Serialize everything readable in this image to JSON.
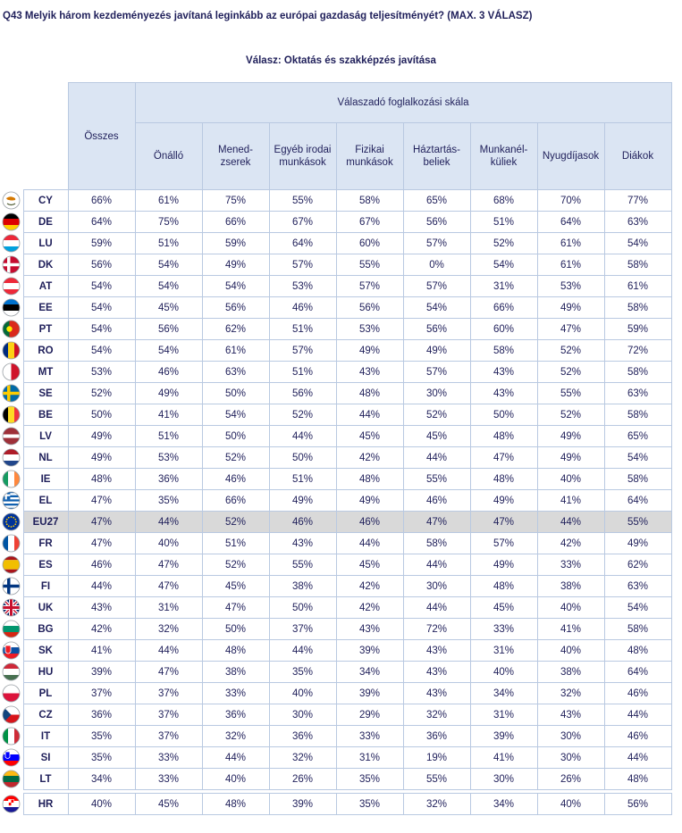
{
  "question": "Q43 Melyik három kezdeményezés javítaná leginkább az európai gazdaság teljesítményét? (MAX. 3 VÁLASZ)",
  "subtitle": "Válasz: Oktatás és szakképzés javítása",
  "chart_data": {
    "type": "table",
    "group_header": "Válaszadó foglalkozási skála",
    "columns": [
      {
        "key": "total",
        "label": "Összes"
      },
      {
        "key": "self",
        "label": "Önálló"
      },
      {
        "key": "mgr",
        "label": "Mened-\nzserek"
      },
      {
        "key": "office",
        "label": "Egyéb irodai\nmunkások"
      },
      {
        "key": "manual",
        "label": "Fizikai\nmunkások"
      },
      {
        "key": "house",
        "label": "Háztartás-\nbeliek"
      },
      {
        "key": "unemp",
        "label": "Munkanél-\nküliek"
      },
      {
        "key": "retired",
        "label": "Nyugdíjasok"
      },
      {
        "key": "students",
        "label": "Diákok"
      }
    ],
    "rows": [
      {
        "country": "CY",
        "values": [
          "66%",
          "61%",
          "75%",
          "55%",
          "58%",
          "65%",
          "68%",
          "70%",
          "77%"
        ]
      },
      {
        "country": "DE",
        "values": [
          "64%",
          "75%",
          "66%",
          "67%",
          "67%",
          "56%",
          "51%",
          "64%",
          "63%"
        ]
      },
      {
        "country": "LU",
        "values": [
          "59%",
          "51%",
          "59%",
          "64%",
          "60%",
          "57%",
          "52%",
          "61%",
          "54%"
        ]
      },
      {
        "country": "DK",
        "values": [
          "56%",
          "54%",
          "49%",
          "57%",
          "55%",
          "0%",
          "54%",
          "61%",
          "58%"
        ]
      },
      {
        "country": "AT",
        "values": [
          "54%",
          "54%",
          "54%",
          "53%",
          "57%",
          "57%",
          "31%",
          "53%",
          "61%"
        ]
      },
      {
        "country": "EE",
        "values": [
          "54%",
          "45%",
          "56%",
          "46%",
          "56%",
          "54%",
          "66%",
          "49%",
          "58%"
        ]
      },
      {
        "country": "PT",
        "values": [
          "54%",
          "56%",
          "62%",
          "51%",
          "53%",
          "56%",
          "60%",
          "47%",
          "59%"
        ]
      },
      {
        "country": "RO",
        "values": [
          "54%",
          "54%",
          "61%",
          "57%",
          "49%",
          "49%",
          "58%",
          "52%",
          "72%"
        ]
      },
      {
        "country": "MT",
        "values": [
          "53%",
          "46%",
          "63%",
          "51%",
          "43%",
          "57%",
          "43%",
          "52%",
          "58%"
        ]
      },
      {
        "country": "SE",
        "values": [
          "52%",
          "49%",
          "50%",
          "56%",
          "48%",
          "30%",
          "43%",
          "55%",
          "63%"
        ]
      },
      {
        "country": "BE",
        "values": [
          "50%",
          "41%",
          "54%",
          "52%",
          "44%",
          "52%",
          "50%",
          "52%",
          "58%"
        ]
      },
      {
        "country": "LV",
        "values": [
          "49%",
          "51%",
          "50%",
          "44%",
          "45%",
          "45%",
          "48%",
          "49%",
          "65%"
        ]
      },
      {
        "country": "NL",
        "values": [
          "49%",
          "53%",
          "52%",
          "50%",
          "42%",
          "44%",
          "47%",
          "49%",
          "54%"
        ]
      },
      {
        "country": "IE",
        "values": [
          "48%",
          "36%",
          "46%",
          "51%",
          "48%",
          "55%",
          "48%",
          "40%",
          "58%"
        ]
      },
      {
        "country": "EL",
        "values": [
          "47%",
          "35%",
          "66%",
          "49%",
          "49%",
          "46%",
          "49%",
          "41%",
          "64%"
        ]
      },
      {
        "country": "EU27",
        "values": [
          "47%",
          "44%",
          "52%",
          "46%",
          "46%",
          "47%",
          "47%",
          "44%",
          "55%"
        ],
        "highlight": true
      },
      {
        "country": "FR",
        "values": [
          "47%",
          "40%",
          "51%",
          "43%",
          "44%",
          "58%",
          "57%",
          "42%",
          "49%"
        ]
      },
      {
        "country": "ES",
        "values": [
          "46%",
          "47%",
          "52%",
          "55%",
          "45%",
          "44%",
          "49%",
          "33%",
          "62%"
        ]
      },
      {
        "country": "FI",
        "values": [
          "44%",
          "47%",
          "45%",
          "38%",
          "42%",
          "30%",
          "48%",
          "38%",
          "63%"
        ]
      },
      {
        "country": "UK",
        "values": [
          "43%",
          "31%",
          "47%",
          "50%",
          "42%",
          "44%",
          "45%",
          "40%",
          "54%"
        ]
      },
      {
        "country": "BG",
        "values": [
          "42%",
          "32%",
          "50%",
          "37%",
          "43%",
          "72%",
          "33%",
          "41%",
          "58%"
        ]
      },
      {
        "country": "SK",
        "values": [
          "41%",
          "44%",
          "48%",
          "44%",
          "39%",
          "43%",
          "31%",
          "40%",
          "48%"
        ]
      },
      {
        "country": "HU",
        "values": [
          "39%",
          "47%",
          "38%",
          "35%",
          "34%",
          "43%",
          "40%",
          "38%",
          "64%"
        ]
      },
      {
        "country": "PL",
        "values": [
          "37%",
          "37%",
          "33%",
          "40%",
          "39%",
          "43%",
          "34%",
          "32%",
          "46%"
        ]
      },
      {
        "country": "CZ",
        "values": [
          "36%",
          "37%",
          "36%",
          "30%",
          "29%",
          "32%",
          "31%",
          "43%",
          "44%"
        ]
      },
      {
        "country": "IT",
        "values": [
          "35%",
          "37%",
          "32%",
          "36%",
          "33%",
          "36%",
          "39%",
          "30%",
          "46%"
        ]
      },
      {
        "country": "SI",
        "values": [
          "35%",
          "33%",
          "44%",
          "32%",
          "31%",
          "19%",
          "41%",
          "30%",
          "44%"
        ]
      },
      {
        "country": "LT",
        "values": [
          "34%",
          "33%",
          "40%",
          "26%",
          "35%",
          "55%",
          "30%",
          "26%",
          "48%"
        ]
      }
    ],
    "extra_rows": [
      {
        "country": "HR",
        "values": [
          "40%",
          "45%",
          "48%",
          "39%",
          "35%",
          "32%",
          "34%",
          "40%",
          "56%"
        ]
      }
    ]
  },
  "flags": {
    "CY": {
      "type": "cy",
      "colors": [
        "#ffffff",
        "#d57800",
        "#4e5b31"
      ]
    },
    "DE": {
      "type": "h",
      "colors": [
        "#000000",
        "#dd0000",
        "#ffce00"
      ]
    },
    "LU": {
      "type": "h",
      "colors": [
        "#ed2939",
        "#ffffff",
        "#00a1de"
      ]
    },
    "DK": {
      "type": "cross",
      "colors": [
        "#c60c30",
        "#ffffff"
      ]
    },
    "AT": {
      "type": "h",
      "colors": [
        "#ed2939",
        "#ffffff",
        "#ed2939"
      ]
    },
    "EE": {
      "type": "h",
      "colors": [
        "#0072ce",
        "#000000",
        "#ffffff"
      ]
    },
    "PT": {
      "type": "pt",
      "colors": [
        "#046a38",
        "#da291c",
        "#ffe900"
      ]
    },
    "RO": {
      "type": "v",
      "colors": [
        "#002b7f",
        "#fcd116",
        "#ce1126"
      ]
    },
    "MT": {
      "type": "v2",
      "colors": [
        "#ffffff",
        "#cf142b"
      ]
    },
    "SE": {
      "type": "cross",
      "colors": [
        "#006aa7",
        "#fecc00"
      ]
    },
    "BE": {
      "type": "v",
      "colors": [
        "#000000",
        "#fdda24",
        "#ef3340"
      ]
    },
    "LV": {
      "type": "lv",
      "colors": [
        "#9e3039",
        "#ffffff",
        "#9e3039"
      ]
    },
    "NL": {
      "type": "h",
      "colors": [
        "#ae1c28",
        "#ffffff",
        "#21468b"
      ]
    },
    "IE": {
      "type": "v",
      "colors": [
        "#169b62",
        "#ffffff",
        "#ff883e"
      ]
    },
    "EL": {
      "type": "gr",
      "colors": [
        "#0d5eaf",
        "#ffffff"
      ]
    },
    "EU27": {
      "type": "eu",
      "colors": [
        "#003399",
        "#ffcc00"
      ]
    },
    "FR": {
      "type": "v",
      "colors": [
        "#0055a4",
        "#ffffff",
        "#ef4135"
      ]
    },
    "ES": {
      "type": "es",
      "colors": [
        "#aa151b",
        "#f1bf00",
        "#aa151b"
      ]
    },
    "FI": {
      "type": "cross",
      "colors": [
        "#ffffff",
        "#003580"
      ]
    },
    "UK": {
      "type": "uk",
      "colors": [
        "#012169",
        "#ffffff",
        "#c8102e"
      ]
    },
    "BG": {
      "type": "h",
      "colors": [
        "#ffffff",
        "#00966e",
        "#d62612"
      ]
    },
    "SK": {
      "type": "sk",
      "colors": [
        "#ffffff",
        "#0b4ea2",
        "#ee1c25"
      ]
    },
    "HU": {
      "type": "h",
      "colors": [
        "#ce2939",
        "#ffffff",
        "#477050"
      ]
    },
    "PL": {
      "type": "h2",
      "colors": [
        "#ffffff",
        "#dc143c"
      ]
    },
    "CZ": {
      "type": "cz",
      "colors": [
        "#ffffff",
        "#d7141a",
        "#11457e"
      ]
    },
    "IT": {
      "type": "v",
      "colors": [
        "#009246",
        "#ffffff",
        "#ce2b37"
      ]
    },
    "SI": {
      "type": "si",
      "colors": [
        "#ffffff",
        "#0000ff",
        "#ff0000"
      ]
    },
    "LT": {
      "type": "h",
      "colors": [
        "#fdb913",
        "#006a44",
        "#c1272d"
      ]
    },
    "HR": {
      "type": "hr",
      "colors": [
        "#ff0000",
        "#ffffff",
        "#171796"
      ]
    }
  }
}
